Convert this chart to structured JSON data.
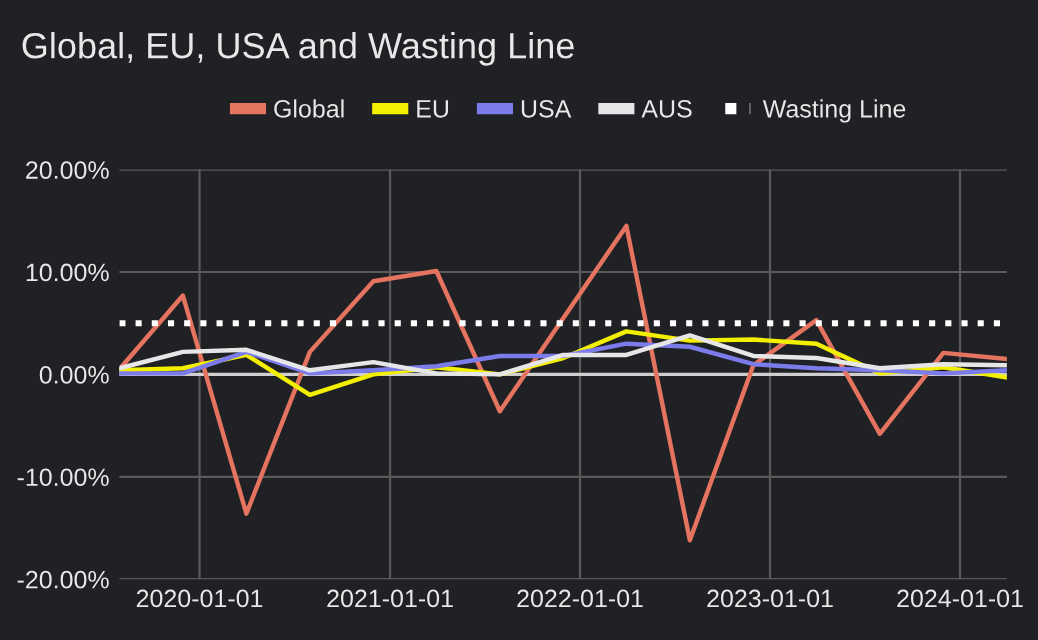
{
  "chart_data": {
    "type": "line",
    "title": "Global, EU, USA and Wasting Line",
    "x": [
      "2019-07-31",
      "2019-11-30",
      "2020-03-31",
      "2020-07-31",
      "2020-11-30",
      "2021-03-31",
      "2021-07-31",
      "2021-11-30",
      "2022-03-31",
      "2022-07-31",
      "2022-11-30",
      "2023-03-31",
      "2023-07-31",
      "2023-11-30",
      "2024-03-31"
    ],
    "series": [
      {
        "name": "Global",
        "color": "#e4735f",
        "values": [
          0.5,
          7.7,
          -13.6,
          2.2,
          9.1,
          10.1,
          -3.6,
          5.5,
          14.5,
          -16.2,
          0.9,
          5.3,
          -5.8,
          2.1,
          1.5
        ]
      },
      {
        "name": "EU",
        "color": "#f2ef00",
        "values": [
          0.4,
          0.6,
          1.9,
          -2.0,
          0.0,
          0.7,
          0.0,
          1.6,
          4.2,
          3.3,
          3.4,
          3.0,
          0.1,
          0.7,
          -0.3
        ]
      },
      {
        "name": "USA",
        "color": "#7b7bea",
        "values": [
          0.1,
          0.1,
          2.2,
          0.1,
          0.4,
          0.8,
          1.8,
          1.8,
          3.0,
          2.7,
          1.0,
          0.6,
          0.4,
          0.1,
          0.4
        ]
      },
      {
        "name": "AUS",
        "color": "#e6e6e6",
        "values": [
          0.6,
          2.2,
          2.4,
          0.4,
          1.2,
          0.1,
          0.0,
          1.9,
          1.9,
          3.8,
          1.8,
          1.6,
          0.6,
          1.0,
          0.9
        ]
      },
      {
        "name": "Wasting Line",
        "color": "#ffffff",
        "line_style": "dotted",
        "values": [
          5,
          5,
          5,
          5,
          5,
          5,
          5,
          5,
          5,
          5,
          5,
          5,
          5,
          5,
          5
        ]
      }
    ],
    "ref_lines": [
      {
        "axis": "y",
        "value": 0,
        "label": null,
        "color": "#cfcfcf"
      }
    ],
    "xlim": [
      "2019-07-31",
      "2024-03-31"
    ],
    "xticks": [
      {
        "value": "2020-01-01",
        "label": "2020-01-01"
      },
      {
        "value": "2021-01-01",
        "label": "2021-01-01"
      },
      {
        "value": "2022-01-01",
        "label": "2022-01-01"
      },
      {
        "value": "2023-01-01",
        "label": "2023-01-01"
      },
      {
        "value": "2024-01-01",
        "label": "2024-01-01"
      }
    ],
    "ylim": [
      -20,
      20
    ],
    "yticks": [
      {
        "value": -20,
        "label": "-20.00%"
      },
      {
        "value": -10,
        "label": "-10.00%"
      },
      {
        "value": 0,
        "label": "0.00%"
      },
      {
        "value": 10,
        "label": "10.00%"
      },
      {
        "value": 20,
        "label": "20.00%"
      }
    ],
    "grid": true,
    "legend": "top",
    "marker": "none",
    "line_style": "solid"
  }
}
